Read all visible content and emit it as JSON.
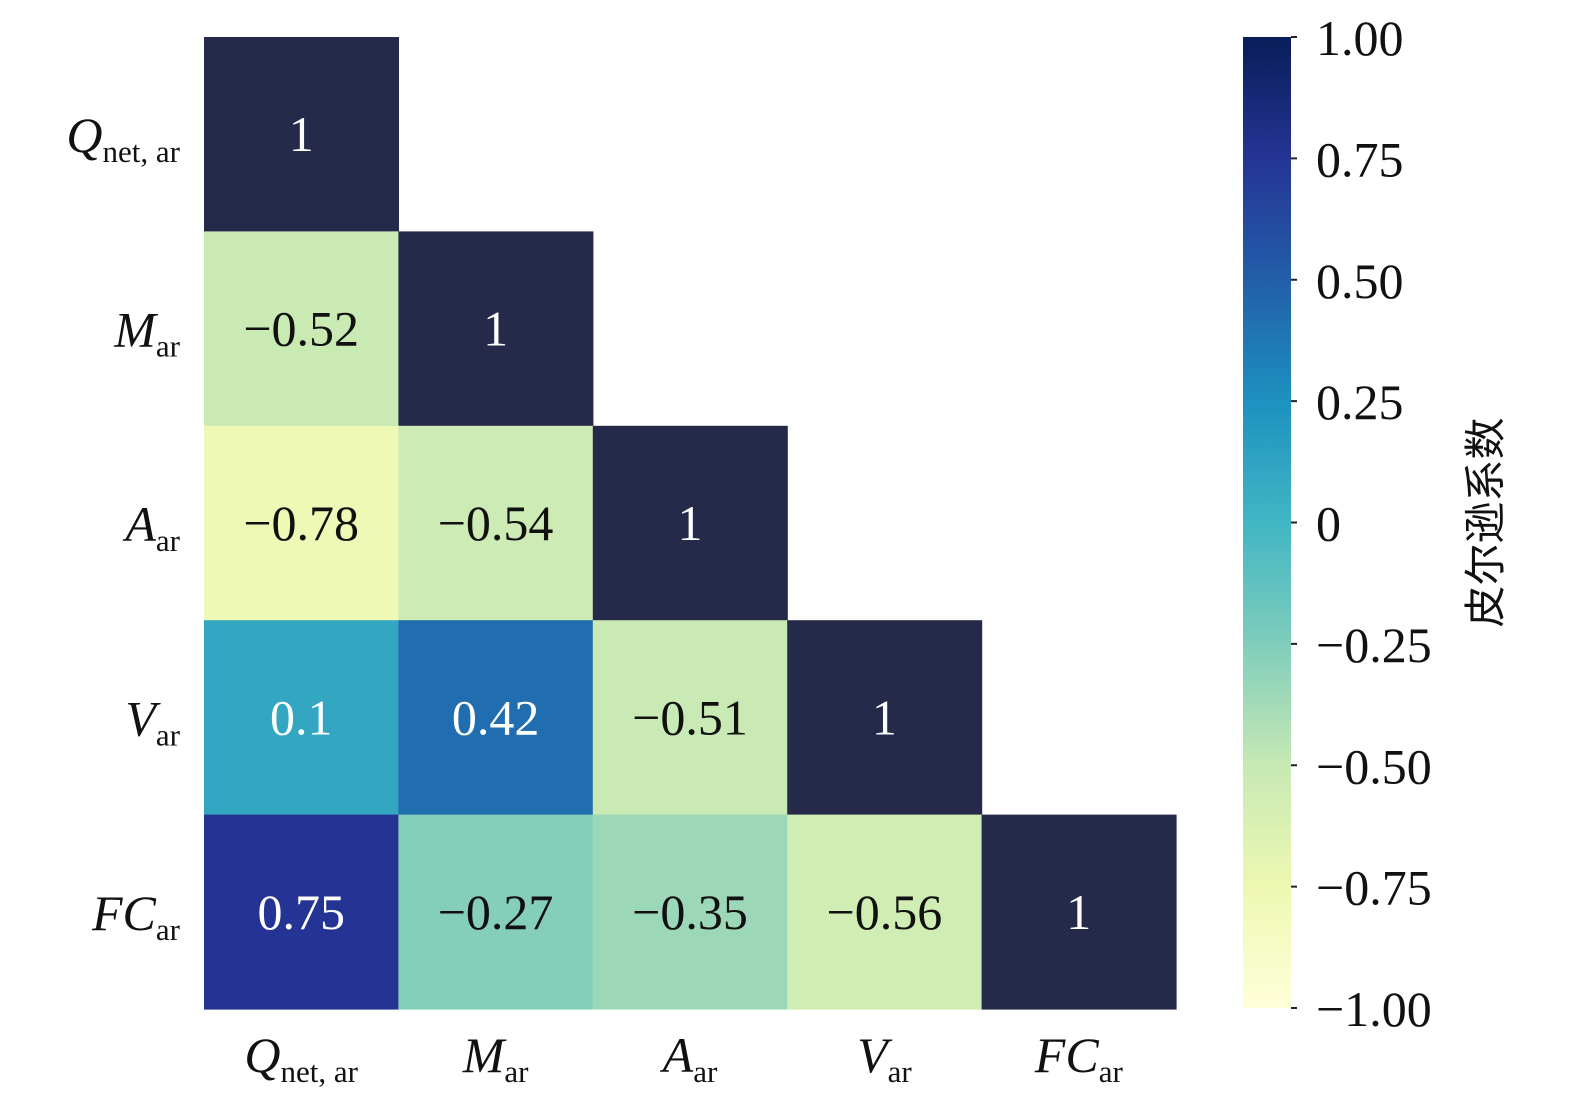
{
  "chart_data": {
    "type": "heatmap",
    "title": "",
    "xlabel": "",
    "ylabel": "",
    "triangle": "lower",
    "variables": [
      {
        "main": "Q",
        "sub": "net, ar"
      },
      {
        "main": "M",
        "sub": "ar"
      },
      {
        "main": "A",
        "sub": "ar"
      },
      {
        "main": "V",
        "sub": "ar"
      },
      {
        "main": "FC",
        "sub": "ar"
      }
    ],
    "matrix": [
      [
        1,
        null,
        null,
        null,
        null
      ],
      [
        -0.52,
        1,
        null,
        null,
        null
      ],
      [
        -0.78,
        -0.54,
        1,
        null,
        null
      ],
      [
        0.1,
        0.42,
        -0.51,
        1,
        null
      ],
      [
        0.75,
        -0.27,
        -0.35,
        -0.56,
        1
      ]
    ],
    "cell_text": [
      [
        "1",
        "",
        "",
        "",
        ""
      ],
      [
        "−0.52",
        "1",
        "",
        "",
        ""
      ],
      [
        "−0.78",
        "−0.54",
        "1",
        "",
        ""
      ],
      [
        "0.1",
        "0.42",
        "−0.51",
        "1",
        ""
      ],
      [
        "0.75",
        "−0.27",
        "−0.35",
        "−0.56",
        "1"
      ]
    ],
    "colorbar": {
      "label": "皮尔逊系数",
      "range": [
        -1.0,
        1.0
      ],
      "ticks": [
        1.0,
        0.75,
        0.5,
        0.25,
        0,
        -0.25,
        -0.5,
        -0.75,
        -1.0
      ],
      "tick_labels": [
        "1.00",
        "0.75",
        "0.50",
        "0.25",
        "0",
        "−0.25",
        "−0.50",
        "−0.75",
        "−1.00"
      ],
      "colormap": "YlGnBu",
      "colormap_stops": [
        "#ffffd9",
        "#edf8b1",
        "#c7e9b4",
        "#7fcdbb",
        "#41b6c4",
        "#1d91c0",
        "#225ea8",
        "#253494",
        "#081d58"
      ]
    },
    "colors": {
      "diagonal": "#262a4a",
      "text_dark": "#111111",
      "text_light": "#ffffff"
    },
    "grid": false,
    "legend": "right"
  }
}
